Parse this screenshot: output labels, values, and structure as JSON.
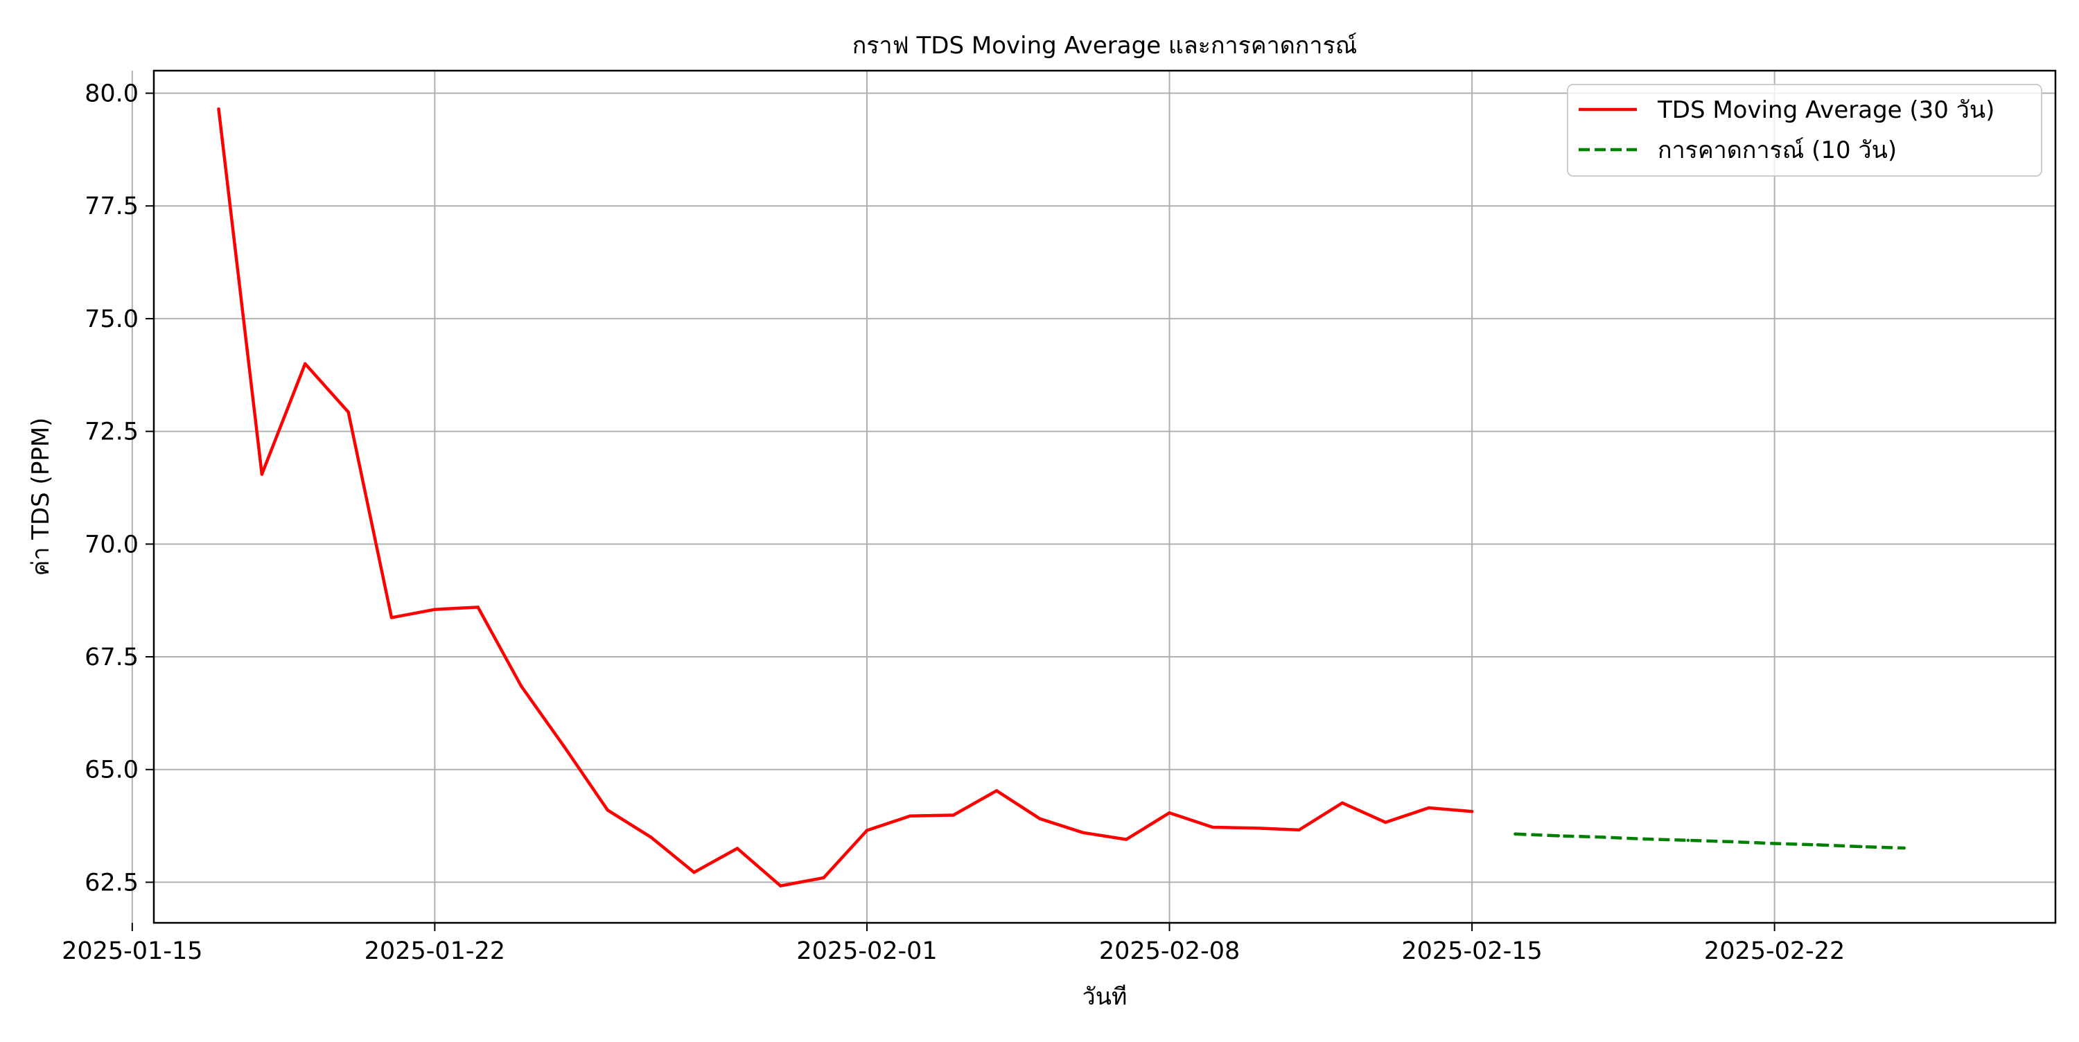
{
  "chart_data": {
    "type": "line",
    "title": "กราฟ TDS Moving Average และการคาดการณ์",
    "xlabel": "วันที",
    "ylabel": "ค่า TDS (PPM)",
    "xlim": [
      "2025-01-15T12:00",
      "2025-02-28T12:00"
    ],
    "ylim": [
      61.6,
      80.5
    ],
    "grid": true,
    "legend_position": "top-right",
    "x_ticks": [
      "2025-01-15",
      "2025-01-22",
      "2025-02-01",
      "2025-02-08",
      "2025-02-15",
      "2025-02-22"
    ],
    "y_ticks": [
      "62.5",
      "65.0",
      "67.5",
      "70.0",
      "72.5",
      "75.0",
      "77.5",
      "80.0"
    ],
    "series": [
      {
        "name": "TDS Moving Average (30 วัน)",
        "color": "#ff0000",
        "style": "solid",
        "x": [
          "2025-01-17",
          "2025-01-18",
          "2025-01-19",
          "2025-01-20",
          "2025-01-21",
          "2025-01-22",
          "2025-01-23",
          "2025-01-24",
          "2025-01-25",
          "2025-01-26",
          "2025-01-27",
          "2025-01-28",
          "2025-01-29",
          "2025-01-30",
          "2025-01-31",
          "2025-02-01",
          "2025-02-02",
          "2025-02-03",
          "2025-02-04",
          "2025-02-05",
          "2025-02-06",
          "2025-02-07",
          "2025-02-08",
          "2025-02-09",
          "2025-02-10",
          "2025-02-11",
          "2025-02-12",
          "2025-02-13",
          "2025-02-14",
          "2025-02-15"
        ],
        "y": [
          79.65,
          71.55,
          74.0,
          72.93,
          68.37,
          68.55,
          68.6,
          66.85,
          65.5,
          64.1,
          63.5,
          62.72,
          63.25,
          62.42,
          62.6,
          63.65,
          63.97,
          63.99,
          64.53,
          63.91,
          63.6,
          63.45,
          64.04,
          63.72,
          63.7,
          63.66,
          64.26,
          63.83,
          64.15,
          64.07
        ]
      },
      {
        "name": "การคาดการณ์ (10 วัน)",
        "color": "#008000",
        "style": "dashed",
        "x": [
          "2025-02-16",
          "2025-02-17",
          "2025-02-18",
          "2025-02-19",
          "2025-02-20",
          "2025-02-21",
          "2025-02-22",
          "2025-02-23",
          "2025-02-24",
          "2025-02-25"
        ],
        "y": [
          63.57,
          63.53,
          63.5,
          63.46,
          63.43,
          63.4,
          63.36,
          63.33,
          63.29,
          63.26
        ]
      }
    ]
  }
}
